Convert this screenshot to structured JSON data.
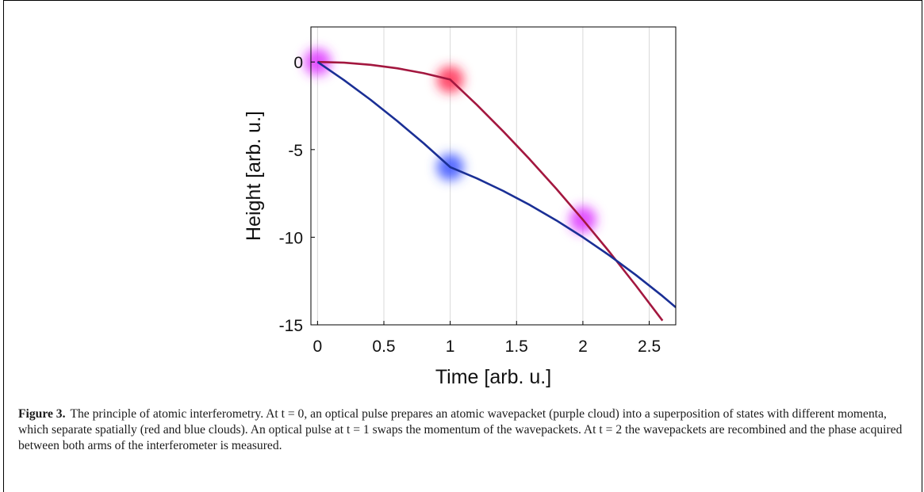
{
  "chart_data": {
    "type": "line",
    "xlabel": "Time [arb. u.]",
    "ylabel": "Height [arb. u.]",
    "xlim": [
      -0.05,
      2.7
    ],
    "ylim": [
      -15,
      2
    ],
    "xticks": [
      0,
      0.5,
      1,
      1.5,
      2,
      2.5
    ],
    "xtick_labels": [
      "0",
      "0.5",
      "1",
      "1.5",
      "2",
      "2.5"
    ],
    "yticks": [
      0,
      -5,
      -10,
      -15
    ],
    "ytick_labels": [
      "0",
      "-5",
      "-10",
      "-15"
    ],
    "grid": "vertical",
    "legend": "none",
    "series": [
      {
        "color": "#a3173f",
        "x": [
          0,
          0.2,
          0.4,
          0.6,
          0.8,
          1.0,
          1.2,
          1.4,
          1.6,
          1.8,
          2.0,
          2.2,
          2.4,
          2.6
        ],
        "y": [
          0,
          -0.04,
          -0.16,
          -0.36,
          -0.64,
          -1.0,
          -2.44,
          -3.96,
          -5.56,
          -7.24,
          -9.0,
          -10.84,
          -12.76,
          -14.76
        ]
      },
      {
        "color": "#1a2f95",
        "x": [
          0,
          0.2,
          0.4,
          0.6,
          0.8,
          1.0,
          1.2,
          1.4,
          1.6,
          1.8,
          2.0,
          2.2,
          2.4,
          2.6,
          2.7
        ],
        "y": [
          0,
          -1.04,
          -2.16,
          -3.36,
          -4.64,
          -6.0,
          -6.64,
          -7.36,
          -8.16,
          -9.04,
          -10.0,
          -11.04,
          -12.16,
          -13.36,
          -14.0
        ]
      }
    ],
    "annotations": [
      {
        "kind": "cloud",
        "x": 0,
        "y": 0,
        "color": "#dd33ff"
      },
      {
        "kind": "cloud",
        "x": 1,
        "y": -1,
        "color": "#ff2a52"
      },
      {
        "kind": "cloud",
        "x": 1,
        "y": -6,
        "color": "#3a52ff"
      },
      {
        "kind": "cloud",
        "x": 2,
        "y": -9,
        "color": "#dd33ff"
      }
    ]
  },
  "caption": {
    "label": "Figure 3.",
    "text": "The principle of atomic interferometry. At t = 0, an optical pulse prepares an atomic wavepacket (purple cloud) into a superposition of states with different momenta, which separate spatially (red and blue clouds). An optical pulse at t = 1 swaps the momentum of the wavepackets. At t = 2 the wavepackets are recombined and the phase acquired between both arms of the interferometer is measured."
  }
}
